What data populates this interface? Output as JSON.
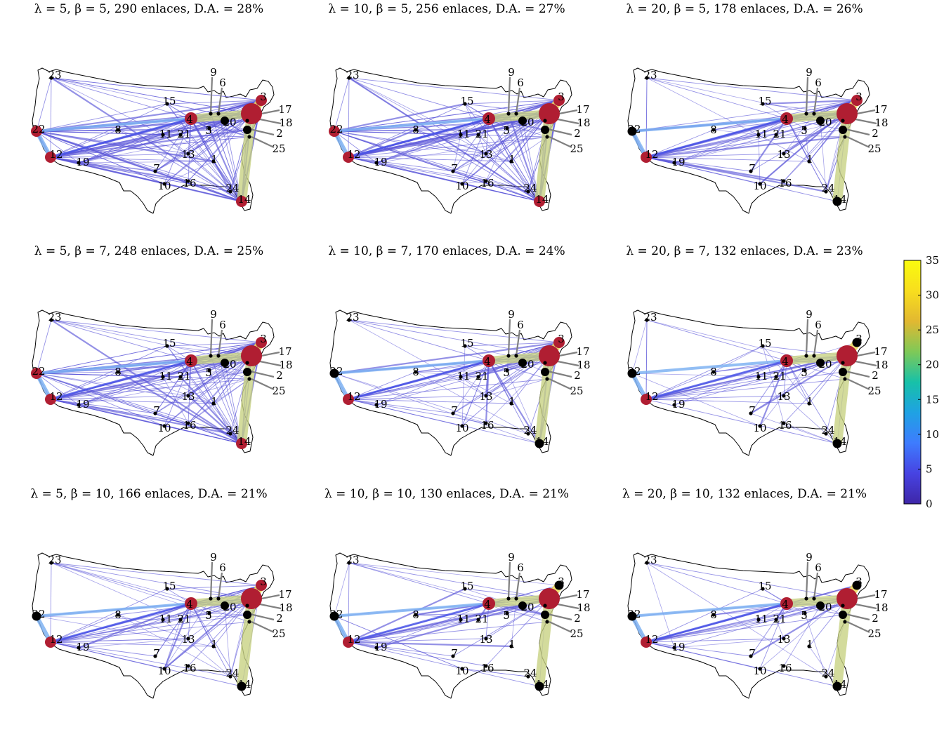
{
  "panels": [
    {
      "title": "λ = 5, β = 5, 290 enlaces, D.A. = 28%",
      "hubs": [
        3,
        4,
        12,
        14,
        22
      ],
      "large_hub": 17,
      "links": 290
    },
    {
      "title": "λ = 10, β = 5, 256 enlaces, D.A. = 27%",
      "hubs": [
        3,
        4,
        12,
        14,
        22
      ],
      "large_hub": 17,
      "links": 256
    },
    {
      "title": "λ = 20, β = 5, 178 enlaces, D.A. = 26%",
      "hubs": [
        3,
        4,
        12
      ],
      "large_hub": 17,
      "links": 178
    },
    {
      "title": "λ = 5, β = 7, 248 enlaces, D.A. = 25%",
      "hubs": [
        3,
        4,
        12,
        14,
        22
      ],
      "large_hub": 17,
      "links": 248
    },
    {
      "title": "λ = 10, β = 7, 170 enlaces, D.A. = 24%",
      "hubs": [
        3,
        4,
        12
      ],
      "large_hub": 17,
      "links": 170
    },
    {
      "title": "λ = 20, β = 7, 132 enlaces, D.A. = 23%",
      "hubs": [
        4,
        12
      ],
      "large_hub": 17,
      "links": 132
    },
    {
      "title": "λ = 5, β = 10, 166 enlaces, D.A. = 21%",
      "hubs": [
        3,
        4,
        12
      ],
      "large_hub": 17,
      "links": 166
    },
    {
      "title": "λ = 10, β = 10, 130 enlaces, D.A. = 21%",
      "hubs": [
        4,
        12
      ],
      "large_hub": 17,
      "links": 130
    },
    {
      "title": "λ = 20, β = 10, 132 enlaces, D.A. = 21%",
      "hubs": [
        4,
        12
      ],
      "large_hub": 17,
      "links": 132
    }
  ],
  "node_labels": [
    "1",
    "2",
    "3",
    "4",
    "5",
    "6",
    "7",
    "8",
    "9",
    "10",
    "11",
    "12",
    "13",
    "14",
    "15",
    "16",
    "17",
    "18",
    "19",
    "20",
    "21",
    "22",
    "23",
    "24",
    "25"
  ],
  "colorbar": {
    "min": 0,
    "max": 35,
    "ticks": [
      "0",
      "5",
      "10",
      "15",
      "20",
      "25",
      "30",
      "35"
    ],
    "colors": [
      "#3e26a8",
      "#4743e2",
      "#3e7cfe",
      "#1fa2e3",
      "#17c1a8",
      "#7fc957",
      "#e2b831",
      "#f8de1e",
      "#f9fb0e"
    ]
  },
  "colors": {
    "hub": "#b01e32",
    "node": "#000000",
    "link_low": "#5b56d9",
    "link_mid": "#7fb3f2",
    "link_high": "#c8d283"
  }
}
